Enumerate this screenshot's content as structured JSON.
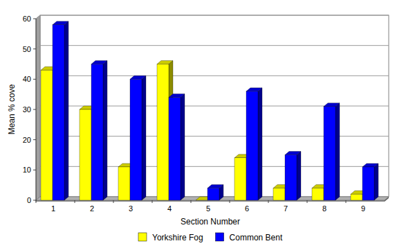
{
  "chart_data": {
    "type": "bar",
    "x_label": "Section Number",
    "y_label": "Mean % cove",
    "categories": [
      "1",
      "2",
      "3",
      "4",
      "5",
      "6",
      "7",
      "8",
      "9"
    ],
    "series": [
      {
        "name": "Yorkshire Fog",
        "color": "#ffff00",
        "values": [
          43,
          30,
          11,
          45,
          0,
          14,
          4,
          4,
          2
        ]
      },
      {
        "name": "Common Bent",
        "color": "#0000ff",
        "values": [
          58,
          45,
          40,
          34,
          4,
          36,
          15,
          31,
          11
        ]
      }
    ],
    "ylim": [
      0,
      60
    ],
    "yticks": [
      0,
      10,
      20,
      30,
      40,
      50,
      60
    ],
    "grid": true,
    "legend": "bottom"
  }
}
